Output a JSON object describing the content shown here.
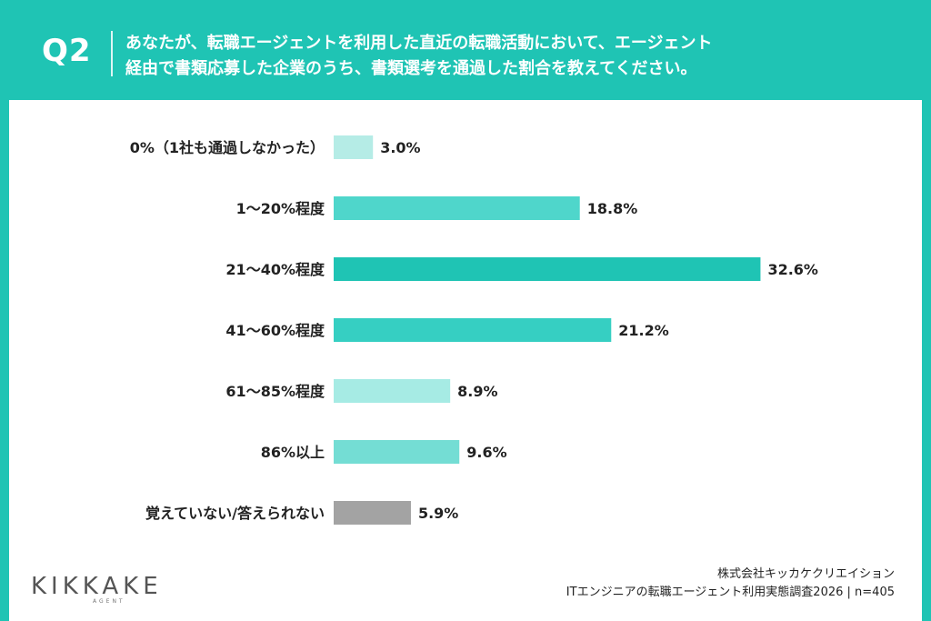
{
  "header": {
    "question_number": "Q2",
    "question_line1": "あなたが、転職エージェントを利用した直近の転職活動において、エージェント",
    "question_line2": "経由で書類応募した企業のうち、書類選考を通過した割合を教えてください。"
  },
  "chart_data": {
    "type": "bar",
    "orientation": "horizontal",
    "categories": [
      "0%（1社も通過しなかった）",
      "1〜20%程度",
      "21〜40%程度",
      "41〜60%程度",
      "61〜85%程度",
      "86%以上",
      "覚えていない/答えられない"
    ],
    "values": [
      3.0,
      18.8,
      32.6,
      21.2,
      8.9,
      9.6,
      5.9
    ],
    "value_labels": [
      "3.0%",
      "18.8%",
      "32.6%",
      "21.2%",
      "8.9%",
      "9.6%",
      "5.9%"
    ],
    "bar_colors": [
      "#b5ece6",
      "#4fd6cb",
      "#1fc4b4",
      "#36cfc2",
      "#a6ebe4",
      "#74ddd4",
      "#a3a3a3"
    ],
    "unit": "%",
    "grid": false,
    "legend": "none"
  },
  "brand": {
    "logo_text": "KIKKAKE",
    "logo_sub": "AGENT"
  },
  "footer": {
    "company": "株式会社キッカケクリエイション",
    "survey": "ITエンジニアの転職エージェント利用実態調査2026 | n=405"
  },
  "colors": {
    "accent": "#1fc4b4",
    "panel": "#ffffff"
  }
}
